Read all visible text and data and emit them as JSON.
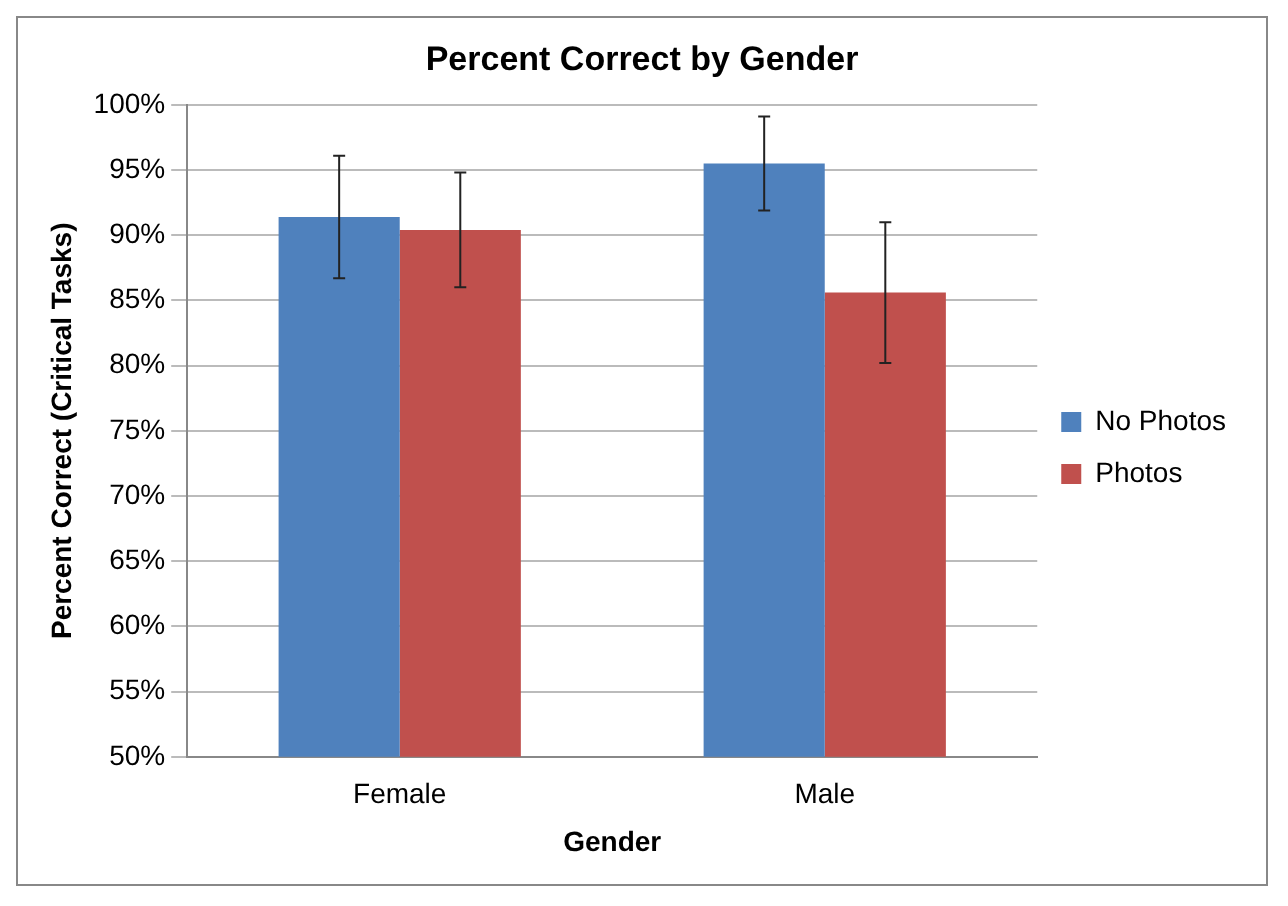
{
  "chart_data": {
    "type": "bar",
    "title": "Percent Correct by Gender",
    "xlabel": "Gender",
    "ylabel": "Percent Correct (Critical Tasks)",
    "categories": [
      "Female",
      "Male"
    ],
    "series": [
      {
        "name": "No Photos",
        "color": "#4f81bd",
        "values": [
          91.4,
          95.5
        ],
        "errors": [
          4.7,
          3.6
        ]
      },
      {
        "name": "Photos",
        "color": "#c0504d",
        "values": [
          90.4,
          85.6
        ],
        "errors": [
          4.4,
          5.4
        ]
      }
    ],
    "ylim": [
      50,
      100
    ],
    "yticks": [
      {
        "value": 50,
        "label": "50%"
      },
      {
        "value": 55,
        "label": "55%"
      },
      {
        "value": 60,
        "label": "60%"
      },
      {
        "value": 65,
        "label": "65%"
      },
      {
        "value": 70,
        "label": "70%"
      },
      {
        "value": 75,
        "label": "75%"
      },
      {
        "value": 80,
        "label": "80%"
      },
      {
        "value": 85,
        "label": "85%"
      },
      {
        "value": 90,
        "label": "90%"
      },
      {
        "value": 95,
        "label": "95%"
      },
      {
        "value": 100,
        "label": "100%"
      }
    ],
    "grid": "y",
    "legend": "right"
  }
}
